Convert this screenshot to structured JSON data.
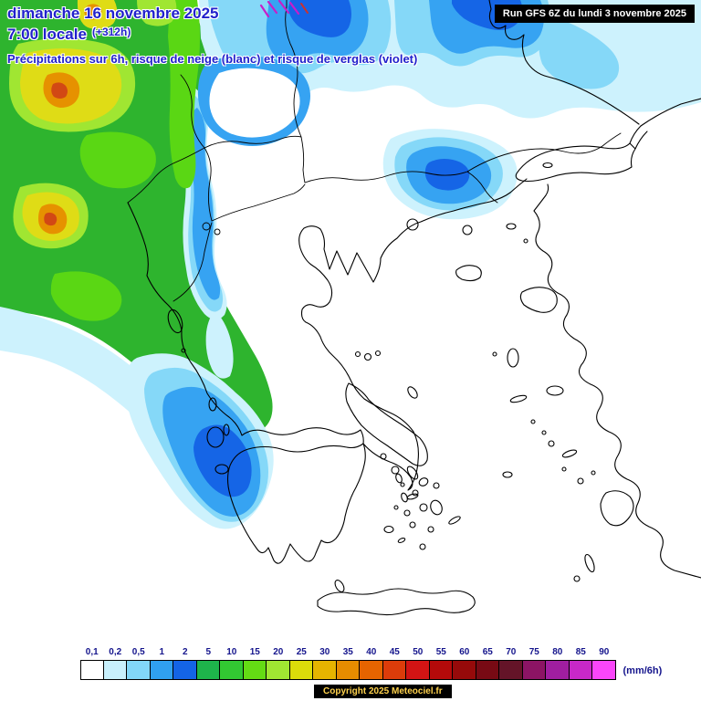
{
  "header": {
    "date_line": "dimanche 16 novembre 2025",
    "time_line": "7:00 locale",
    "offset": "(+312h)",
    "subtitle": "Précipitations sur 6h, risque de neige (blanc) et risque de verglas (violet)",
    "run_info": "Run GFS 6Z du lundi 3 novembre 2025"
  },
  "legend": {
    "unit": "(mm/6h)",
    "values": [
      "0,1",
      "0,2",
      "0,5",
      "1",
      "2",
      "5",
      "10",
      "15",
      "20",
      "25",
      "30",
      "35",
      "40",
      "45",
      "50",
      "55",
      "60",
      "65",
      "70",
      "75",
      "80",
      "85",
      "90"
    ],
    "colors": [
      "#ffffff",
      "#c8f0fc",
      "#82d7f8",
      "#30a0f0",
      "#1464e6",
      "#1eb44b",
      "#32c832",
      "#64dc14",
      "#a0e632",
      "#dcdc0a",
      "#e6b400",
      "#e68c00",
      "#e66400",
      "#dc3c0a",
      "#d21414",
      "#b40a0a",
      "#960a0a",
      "#780a14",
      "#641428",
      "#8c1464",
      "#a01ea0",
      "#c828c8",
      "#fa46fa"
    ]
  },
  "footer": {
    "copyright": "Copyright 2025 Meteociel.fr"
  },
  "theme": {
    "title_blue": "#2121cc",
    "legend_text": "#14148c",
    "copyright_text": "#ffd24d",
    "run_text": "#ffffff",
    "box_black": "#000000"
  },
  "map": {
    "colors": {
      "pale_cyan": "#cdf2fd",
      "cyan": "#85d8f8",
      "blue": "#36a3f2",
      "deep_blue": "#1565e6",
      "green": "#2eb42e",
      "bright_green": "#5ad714",
      "yellow_green": "#a0e632",
      "yellow": "#dfdc16",
      "orange": "#e69100",
      "red_orange": "#d24814",
      "violet": "#c81ec8",
      "snow_white": "#ffffff"
    }
  }
}
